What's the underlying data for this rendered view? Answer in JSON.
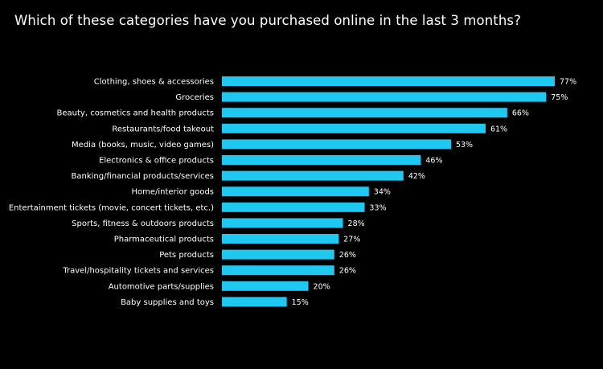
{
  "title": "Which of these categories have you purchased online in the last 3 months?",
  "colors": {
    "background": "#000000",
    "bar": "#1ec8f0",
    "text": "#ffffff"
  },
  "chart_data": {
    "type": "bar",
    "orientation": "horizontal",
    "title": "Which of these categories have you purchased online in the last 3 months?",
    "xlabel": "",
    "ylabel": "",
    "xlim": [
      0,
      100
    ],
    "grid": false,
    "value_suffix": "%",
    "categories": [
      "Clothing, shoes & accessories",
      "Groceries",
      "Beauty, cosmetics and health products",
      "Restaurants/food takeout",
      "Media (books, music, video games)",
      "Electronics & office products",
      "Banking/financial products/services",
      "Home/interior goods",
      "Entertainment tickets (movie, concert tickets, etc.)",
      "Sports, fitness & outdoors products",
      "Pharmaceutical products",
      "Pets products",
      "Travel/hospitality tickets and services",
      "Automotive parts/supplies",
      "Baby supplies and toys"
    ],
    "values": [
      77,
      75,
      66,
      61,
      53,
      46,
      42,
      34,
      33,
      28,
      27,
      26,
      26,
      20,
      15
    ]
  }
}
